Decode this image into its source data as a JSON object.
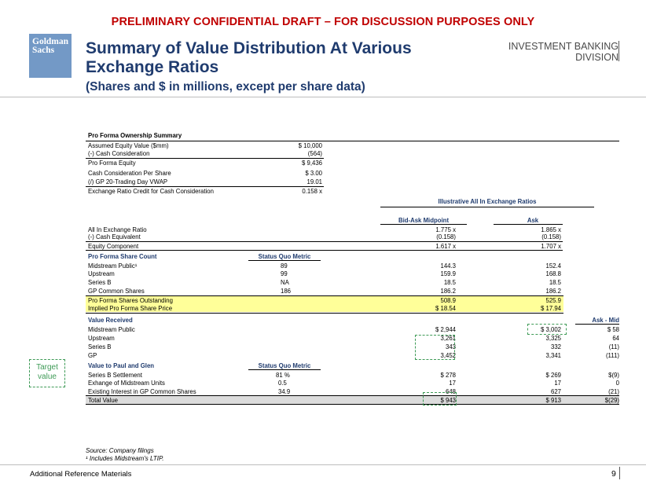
{
  "banner": "PRELIMINARY CONFIDENTIAL DRAFT – FOR DISCUSSION PURPOSES ONLY",
  "logo": {
    "line1": "Goldman",
    "line2": "Sachs"
  },
  "title_line1": "Summary of Value Distribution At Various",
  "title_line2": "Exchange Ratios",
  "subtitle": "(Shares and $ in millions, except per share data)",
  "division": {
    "line1": "INVESTMENT BANKING",
    "line2": "DIVISION"
  },
  "ownership": {
    "header": "Pro Forma Ownership Summary",
    "rows": [
      {
        "label": "Assumed Equity Value ($mm)",
        "value": "$ 10,000"
      },
      {
        "label": "(-) Cash Consideration",
        "value": "(564)"
      },
      {
        "label": "Pro Forma Equity",
        "value": "$ 9,436"
      },
      {
        "label": "Cash Consideration Per Share",
        "value": "$ 3.00"
      },
      {
        "label": "(/) GP 20-Trading Day VWAP",
        "value": "19.01"
      },
      {
        "label": "Exchange Ratio Credit for Cash Consideration",
        "value": "0.158 x"
      }
    ]
  },
  "exchange": {
    "group_header": "Illustrative All In Exchange Ratios",
    "col_mid": "Bid-Ask Midpoint",
    "col_ask": "Ask",
    "rows": [
      {
        "label": "All In Exchange Ratio",
        "mid": "1.775 x",
        "ask": "1.865 x"
      },
      {
        "label": "(-) Cash Equivalent",
        "mid": "(0.158)",
        "ask": "(0.158)"
      },
      {
        "label": "Equity Component",
        "mid": "1.617 x",
        "ask": "1.707 x"
      }
    ]
  },
  "share_count": {
    "header": "Pro Forma Share Count",
    "sq_header": "Status Quo Metric",
    "rows": [
      {
        "label": "Midstream Public¹",
        "sq": "89",
        "mid": "144.3",
        "ask": "152.4"
      },
      {
        "label": "Upstream",
        "sq": "99",
        "mid": "159.9",
        "ask": "168.8"
      },
      {
        "label": "Series B",
        "sq": "NA",
        "mid": "18.5",
        "ask": "18.5"
      },
      {
        "label": "GP Common Shares",
        "sq": "186",
        "mid": "186.2",
        "ask": "186.2"
      }
    ],
    "pfso": {
      "label": "Pro Forma Shares Outstanding",
      "mid": "508.9",
      "ask": "525.9"
    },
    "price": {
      "label": "Implied Pro Forma Share Price",
      "mid": "$ 18.54",
      "ask": "$ 17.94"
    }
  },
  "value_received": {
    "header": "Value Received",
    "diff_header": "Ask - Mid",
    "rows": [
      {
        "label": "Midstream Public",
        "mid": "$ 2,944",
        "ask": "$ 3,002",
        "diff": "$ 58"
      },
      {
        "label": "Upstream",
        "mid": "3,261",
        "ask": "3,325",
        "diff": "64"
      },
      {
        "label": "Series B",
        "mid": "343",
        "ask": "332",
        "diff": "(11)"
      },
      {
        "label": "GP",
        "mid": "3,452",
        "ask": "3,341",
        "diff": "(111)"
      }
    ]
  },
  "paul_glen": {
    "header": "Value to Paul and Glen",
    "sq_header": "Status Quo Metric",
    "rows": [
      {
        "label": "Series B Settlement",
        "sq": "81 %",
        "mid": "$ 278",
        "ask": "$ 269",
        "diff": "$(9)"
      },
      {
        "label": "Exhange of Midstream Units",
        "sq": "0.5",
        "mid": "17",
        "ask": "17",
        "diff": "0"
      },
      {
        "label": "Existing Interest in GP Common Shares",
        "sq": "34.9",
        "mid": "648",
        "ask": "627",
        "diff": "(21)"
      }
    ],
    "total": {
      "label": "Total Value",
      "mid": "$ 943",
      "ask": "$ 913",
      "diff": "$(29)"
    }
  },
  "target_note": {
    "line1": "Target",
    "line2": "value"
  },
  "source": "Source: Company filings",
  "footnote": "¹ Includes Midstream's LTIP.",
  "footer": "Additional Reference Materials",
  "page_number": "9",
  "colors": {
    "banner_red": "#c00000",
    "title_navy": "#1f3b6e",
    "logo_blue": "#7399c6",
    "highlight_yellow": "#ffff99",
    "annotation_green": "#3f9b57"
  }
}
